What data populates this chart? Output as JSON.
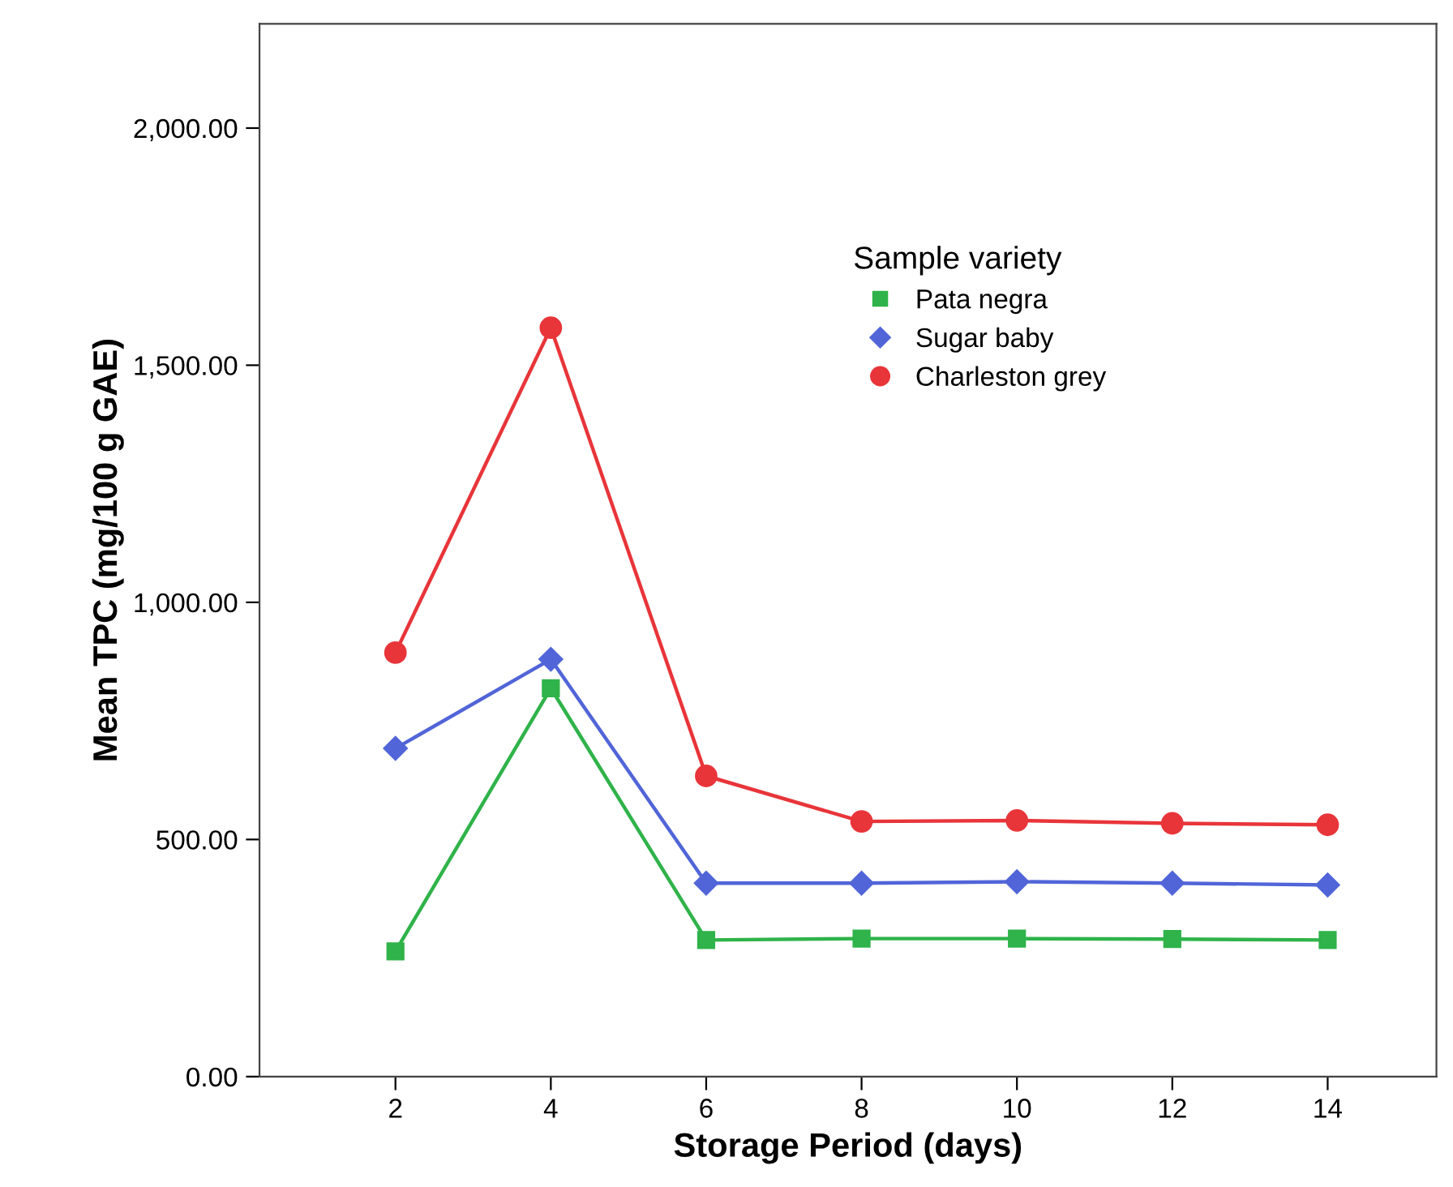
{
  "chart_data": {
    "type": "line",
    "xlabel": "Storage Period (days)",
    "ylabel": "Mean TPC (mg/100 g GAE)",
    "legend_title": "Sample variety",
    "legend": "right",
    "line_style": "solid",
    "grid": false,
    "xlim": [
      0.25,
      15.4
    ],
    "xticks": [
      2,
      4,
      6,
      8,
      10,
      12,
      14
    ],
    "ylim": [
      0,
      2220
    ],
    "yticks": [
      {
        "value": 0,
        "label": "0.00"
      },
      {
        "value": 500,
        "label": "500.00"
      },
      {
        "value": 1000,
        "label": "1,000.00"
      },
      {
        "value": 1500,
        "label": "1,500.00"
      },
      {
        "value": 2000,
        "label": "2,000.00"
      }
    ],
    "series": [
      {
        "name": "Pata negra",
        "color": "#2fb34a",
        "marker": "square",
        "x": [
          2,
          4,
          6,
          8,
          10,
          12,
          14
        ],
        "values": [
          264,
          819,
          288,
          291,
          291,
          290,
          288
        ]
      },
      {
        "name": "Sugar baby",
        "color": "#5165d8",
        "marker": "diamond",
        "x": [
          2,
          4,
          6,
          8,
          10,
          12,
          14
        ],
        "values": [
          692,
          880,
          408,
          408,
          411,
          408,
          404
        ]
      },
      {
        "name": "Charleston grey",
        "color": "#e8353a",
        "marker": "circle",
        "x": [
          2,
          4,
          6,
          8,
          10,
          12,
          14
        ],
        "values": [
          894,
          1579,
          634,
          538,
          540,
          534,
          531
        ]
      }
    ]
  }
}
